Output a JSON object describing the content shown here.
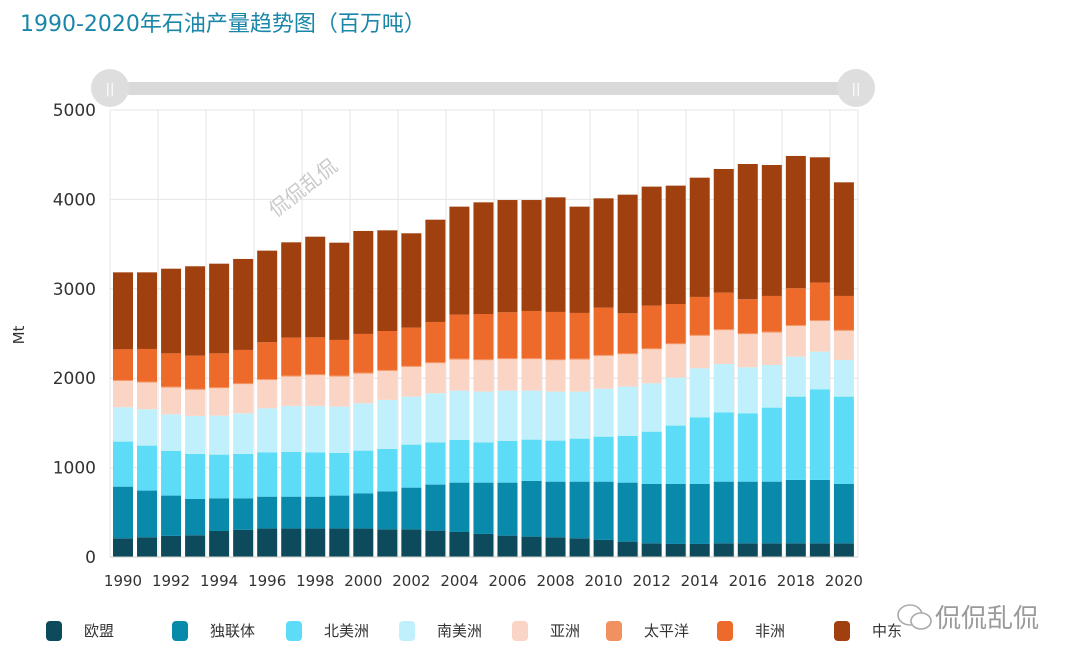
{
  "title": "1990-2020年石油产量趋势图（百万吨）",
  "watermark": "侃侃乱侃",
  "logo_text": "侃侃乱侃",
  "chart_data": {
    "type": "bar",
    "stacked": true,
    "title": "1990-2020年石油产量趋势图（百万吨）",
    "ylabel": "Mt",
    "xlabel": "",
    "ylim": [
      0,
      5000
    ],
    "yticks": [
      0,
      1000,
      2000,
      3000,
      4000,
      5000
    ],
    "xtick_labels": [
      "1990",
      "1992",
      "1994",
      "1996",
      "1998",
      "2000",
      "2002",
      "2004",
      "2006",
      "2008",
      "2010",
      "2012",
      "2014",
      "2016",
      "2018",
      "2020"
    ],
    "grid": true,
    "legend": "bottom",
    "categories": [
      "1990",
      "1991",
      "1992",
      "1993",
      "1994",
      "1995",
      "1996",
      "1997",
      "1998",
      "1999",
      "2000",
      "2001",
      "2002",
      "2003",
      "2004",
      "2005",
      "2006",
      "2007",
      "2008",
      "2009",
      "2010",
      "2011",
      "2012",
      "2013",
      "2014",
      "2015",
      "2016",
      "2017",
      "2018",
      "2019",
      "2020"
    ],
    "series": [
      {
        "name": "欧盟",
        "color": "#0d4b5c",
        "values": [
          209,
          221,
          236,
          243,
          291,
          303,
          318,
          318,
          318,
          318,
          318,
          310,
          310,
          295,
          280,
          258,
          239,
          228,
          221,
          209,
          191,
          172,
          153,
          146,
          146,
          153,
          153,
          153,
          153,
          153,
          153
        ]
      },
      {
        "name": "独联体",
        "color": "#0a8aab",
        "values": [
          578,
          522,
          451,
          406,
          366,
          354,
          357,
          357,
          357,
          369,
          395,
          425,
          466,
          515,
          552,
          574,
          593,
          623,
          622,
          634,
          652,
          660,
          664,
          671,
          671,
          690,
          690,
          690,
          709,
          709,
          664
        ]
      },
      {
        "name": "北美洲",
        "color": "#5ddcf7",
        "values": [
          504,
          503,
          499,
          504,
          488,
          496,
          496,
          500,
          496,
          477,
          477,
          474,
          481,
          473,
          477,
          451,
          466,
          462,
          459,
          481,
          503,
          522,
          585,
          653,
          746,
          776,
          765,
          828,
          932,
          1014,
          977
        ]
      },
      {
        "name": "南美洲",
        "color": "#bff0fb",
        "values": [
          384,
          406,
          410,
          425,
          436,
          454,
          492,
          515,
          519,
          518,
          529,
          548,
          537,
          548,
          552,
          567,
          563,
          548,
          548,
          526,
          537,
          552,
          541,
          536,
          548,
          540,
          514,
          477,
          447,
          421,
          410
        ]
      },
      {
        "name": "亚洲",
        "color": "#fad5c6",
        "values": [
          295,
          300,
          300,
          292,
          307,
          326,
          318,
          329,
          344,
          337,
          333,
          325,
          333,
          337,
          348,
          351,
          352,
          352,
          351,
          359,
          367,
          362,
          381,
          374,
          363,
          378,
          370,
          363,
          344,
          344,
          326
        ]
      },
      {
        "name": "太平洋",
        "color": "#f0915f",
        "values": [
          10,
          10,
          10,
          10,
          10,
          10,
          10,
          10,
          10,
          10,
          10,
          10,
          10,
          10,
          10,
          10,
          10,
          10,
          10,
          10,
          10,
          10,
          10,
          10,
          10,
          10,
          10,
          10,
          10,
          10,
          10
        ]
      },
      {
        "name": "非洲",
        "color": "#ee6a2a",
        "values": [
          343,
          365,
          372,
          372,
          380,
          373,
          411,
          425,
          413,
          399,
          433,
          436,
          429,
          451,
          492,
          507,
          514,
          529,
          530,
          511,
          529,
          448,
          478,
          440,
          425,
          410,
          381,
          399,
          411,
          418,
          380
        ]
      },
      {
        "name": "中东",
        "color": "#a0400f",
        "values": [
          861,
          857,
          947,
          1000,
          1003,
          1018,
          1025,
          1066,
          1126,
          1088,
          1152,
          1126,
          1055,
          1144,
          1208,
          1249,
          1256,
          1241,
          1282,
          1189,
          1223,
          1327,
          1331,
          1324,
          1334,
          1383,
          1513,
          1465,
          1480,
          1402,
          1271
        ]
      }
    ]
  }
}
